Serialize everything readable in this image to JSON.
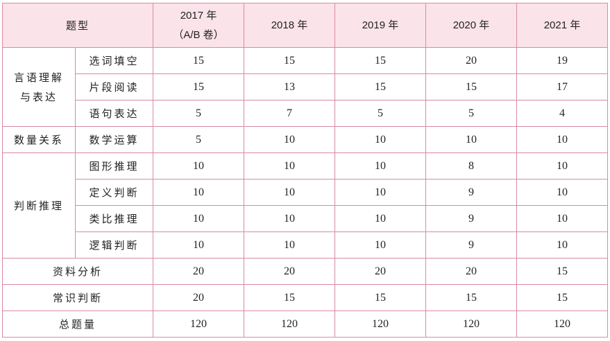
{
  "header": {
    "type_label": "题型",
    "years": [
      {
        "line1": "2017 年",
        "line2": "（A/B 卷）"
      },
      {
        "line1": "2018 年",
        "line2": ""
      },
      {
        "line1": "2019 年",
        "line2": ""
      },
      {
        "line1": "2020 年",
        "line2": ""
      },
      {
        "line1": "2021 年",
        "line2": ""
      }
    ]
  },
  "groups": {
    "language": {
      "label_line1": "言语理解",
      "label_line2": "与表达",
      "rows": [
        {
          "name": "选词填空",
          "values": [
            "15",
            "15",
            "15",
            "20",
            "19"
          ]
        },
        {
          "name": "片段阅读",
          "values": [
            "15",
            "13",
            "15",
            "15",
            "17"
          ]
        },
        {
          "name": "语句表达",
          "values": [
            "5",
            "7",
            "5",
            "5",
            "4"
          ]
        }
      ]
    },
    "quantity": {
      "label": "数量关系",
      "rows": [
        {
          "name": "数学运算",
          "values": [
            "5",
            "10",
            "10",
            "10",
            "10"
          ]
        }
      ]
    },
    "judgment": {
      "label": "判断推理",
      "rows": [
        {
          "name": "图形推理",
          "values": [
            "10",
            "10",
            "10",
            "8",
            "10"
          ]
        },
        {
          "name": "定义判断",
          "values": [
            "10",
            "10",
            "10",
            "9",
            "10"
          ]
        },
        {
          "name": "类比推理",
          "values": [
            "10",
            "10",
            "10",
            "9",
            "10"
          ]
        },
        {
          "name": "逻辑判断",
          "values": [
            "10",
            "10",
            "10",
            "9",
            "10"
          ]
        }
      ]
    }
  },
  "singles": [
    {
      "name": "资料分析",
      "values": [
        "20",
        "20",
        "20",
        "20",
        "15"
      ]
    },
    {
      "name": "常识判断",
      "values": [
        "20",
        "15",
        "15",
        "15",
        "15"
      ]
    },
    {
      "name": "总题量",
      "values": [
        "120",
        "120",
        "120",
        "120",
        "120"
      ]
    }
  ]
}
